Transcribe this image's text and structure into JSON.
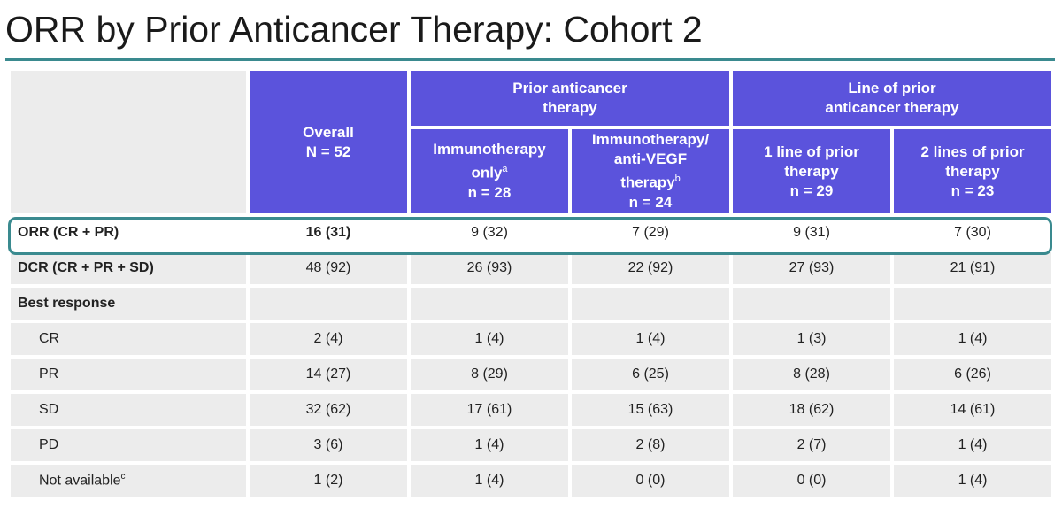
{
  "title": "ORR by Prior Anticancer Therapy: Cohort 2",
  "colors": {
    "header_bg": "#5b53dc",
    "cell_bg": "#ececec",
    "accent": "#3a8a8f"
  },
  "header": {
    "overall": {
      "line1": "Overall",
      "line2": "N = 52"
    },
    "group_prior": {
      "line1": "Prior anticancer",
      "line2": "therapy"
    },
    "group_line": {
      "line1": "Line of prior",
      "line2": "anticancer therapy"
    },
    "immuno_only": {
      "line1": "Immunotherapy",
      "line2": "only",
      "sup": "a",
      "line3": "n = 28"
    },
    "immuno_vegf": {
      "line1": "Immunotherapy/",
      "line2": "anti-VEGF",
      "line3": "therapy",
      "sup": "b",
      "line4": "n = 24"
    },
    "one_line": {
      "line1": "1 line of prior",
      "line2": "therapy",
      "line3": "n = 29"
    },
    "two_lines": {
      "line1": "2 lines of prior",
      "line2": "therapy",
      "line3": "n = 23"
    }
  },
  "rows": [
    {
      "label": "ORR (CR + PR)",
      "cells": [
        "16 (31)",
        "9 (32)",
        "7 (29)",
        "9 (31)",
        "7 (30)"
      ]
    },
    {
      "label": "DCR (CR + PR + SD)",
      "cells": [
        "48 (92)",
        "26 (93)",
        "22 (92)",
        "27 (93)",
        "21 (91)"
      ]
    },
    {
      "label": "Best response",
      "cells": [
        "",
        "",
        "",
        "",
        ""
      ]
    },
    {
      "label": "CR",
      "cells": [
        "2 (4)",
        "1 (4)",
        "1 (4)",
        "1 (3)",
        "1 (4)"
      ]
    },
    {
      "label": "PR",
      "cells": [
        "14 (27)",
        "8 (29)",
        "6 (25)",
        "8 (28)",
        "6 (26)"
      ]
    },
    {
      "label": "SD",
      "cells": [
        "32 (62)",
        "17 (61)",
        "15 (63)",
        "18 (62)",
        "14 (61)"
      ]
    },
    {
      "label": "PD",
      "cells": [
        "3 (6)",
        "1 (4)",
        "2 (8)",
        "2 (7)",
        "1 (4)"
      ]
    },
    {
      "label": "Not available",
      "sup": "c",
      "cells": [
        "1 (2)",
        "1 (4)",
        "0 (0)",
        "0 (0)",
        "1 (4)"
      ]
    }
  ]
}
